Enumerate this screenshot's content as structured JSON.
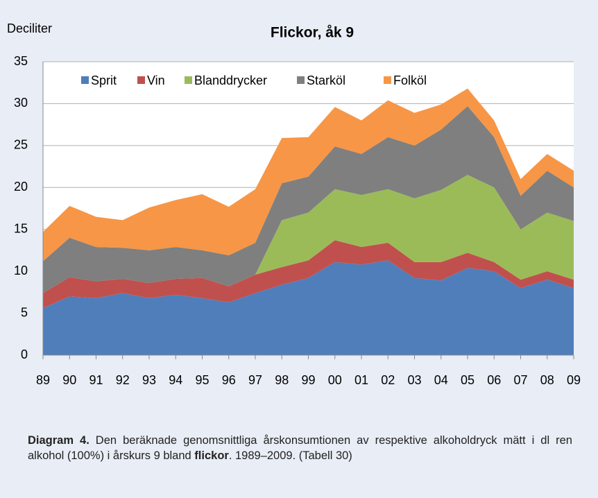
{
  "chart_data": {
    "type": "stacked-area",
    "title": "Flickor, åk 9",
    "y_label": "Deciliter",
    "categories": [
      "89",
      "90",
      "91",
      "92",
      "93",
      "94",
      "95",
      "96",
      "97",
      "98",
      "99",
      "00",
      "01",
      "02",
      "03",
      "04",
      "05",
      "06",
      "07",
      "08",
      "09"
    ],
    "series": [
      {
        "name": "Sprit",
        "color": "#4f7ebb",
        "values": [
          5.6,
          7.0,
          6.8,
          7.4,
          6.8,
          7.2,
          6.8,
          6.3,
          7.4,
          8.4,
          9.2,
          11.1,
          10.8,
          11.3,
          9.2,
          8.9,
          10.4,
          10.0,
          8.0,
          9.0,
          8.0
        ]
      },
      {
        "name": "Vin",
        "color": "#c0504d",
        "values": [
          1.8,
          2.3,
          2.0,
          1.7,
          1.8,
          1.9,
          2.4,
          1.9,
          2.2,
          2.1,
          2.1,
          2.6,
          2.1,
          2.1,
          1.9,
          2.2,
          1.8,
          1.1,
          1.0,
          1.0,
          1.0
        ]
      },
      {
        "name": "Blanddrycker",
        "color": "#9bbb59",
        "values": [
          0,
          0,
          0,
          0,
          0,
          0,
          0,
          0,
          0,
          5.6,
          5.7,
          6.1,
          6.2,
          6.4,
          7.6,
          8.6,
          9.3,
          8.9,
          6.0,
          7.0,
          7.0
        ]
      },
      {
        "name": "Starköl",
        "color": "#7f7f7f",
        "values": [
          3.8,
          4.7,
          4.1,
          3.7,
          3.9,
          3.8,
          3.3,
          3.7,
          3.8,
          4.4,
          4.3,
          5.1,
          4.9,
          6.2,
          6.3,
          7.2,
          8.2,
          6.0,
          4.0,
          5.0,
          4.0
        ]
      },
      {
        "name": "Folköl",
        "color": "#f79646",
        "values": [
          3.5,
          3.8,
          3.6,
          3.3,
          5.1,
          5.6,
          6.7,
          5.8,
          6.4,
          5.4,
          4.7,
          4.7,
          4.0,
          4.4,
          3.9,
          3.0,
          2.1,
          2.0,
          2.0,
          2.0,
          2.0
        ]
      }
    ],
    "ylim": [
      0,
      35
    ],
    "yticks": [
      0,
      5,
      10,
      15,
      20,
      25,
      30,
      35
    ],
    "grid": true,
    "caption": [
      "Diagram 4.",
      " Den beräknade genomsnittliga årskonsumtionen av respektive alkoholdryck mätt i dl ren alkohol (100%) i årskurs 9 bland ",
      "flickor",
      ". 1989–2009. (Tabell 30)"
    ]
  }
}
